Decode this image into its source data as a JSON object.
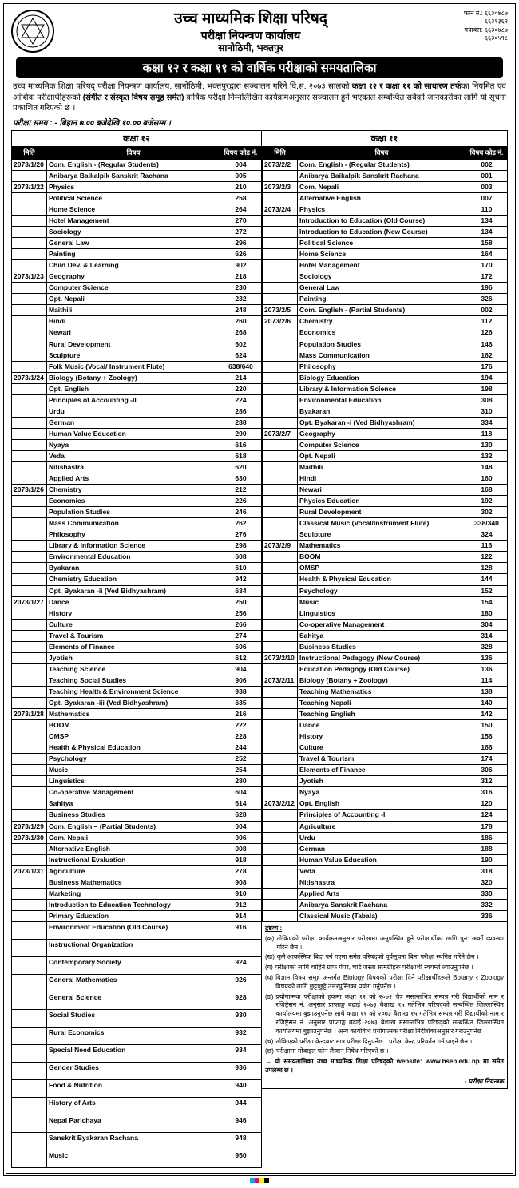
{
  "header": {
    "org": "उच्च माध्यमिक शिक्षा परिषद्",
    "dept": "परीक्षा नियन्त्रण कार्यालय",
    "addr": "सानोठिमी, भक्तपुर",
    "phone_lbl": "फोन नं.:",
    "phones": [
      "६६३०७८७",
      "६६३१३६२"
    ],
    "fax_lbl": "फ्याक्स:",
    "faxes": [
      "६६३०७८७",
      "६६३०५९८"
    ]
  },
  "banner": "कक्षा १२ र कक्षा ११ को वार्षिक परीक्षाको समयतालिका",
  "intro": "उच्च माध्यमिक शिक्षा परिषद् परीक्षा नियन्त्रण कार्यालय, सानोठिमी, भक्तपुरद्वारा सञ्चालन गरिने वि.सं. २०७३ सालको <b>कक्षा १२ र कक्षा ११ को साधारण तर्फ</b>का नियमित एवं आंशिक परीक्षार्थीहरूको <b>(संगीत र संस्कृत विषय समूह समेत)</b> वार्षिक परीक्षा निम्नलिखित कार्यक्रमअनुसार सञ्चालन हुने भएकाले सम्बन्धित सबैको जानकारीका लागि यो सूचना प्रकाशित गरिएको छ ।",
  "exam_time": "परीक्षा समय : - बिहान ७.०० बजेदेखि १०.०० बजेसम्म ।",
  "class12_title": "कक्षा १२",
  "class11_title": "कक्षा ११",
  "th": {
    "date": "मिति",
    "subject": "विषय",
    "code": "विषय कोड नं."
  },
  "c12": [
    [
      "2073/1/20",
      "Com. English - (Regular Students)",
      "004"
    ],
    [
      "",
      "Anibarya Baikalpik Sanskrit Rachana",
      "005"
    ],
    [
      "2073/1/22",
      "Physics",
      "210"
    ],
    [
      "",
      "Political Science",
      "258"
    ],
    [
      "",
      "Home Science",
      "264"
    ],
    [
      "",
      "Hotel Management",
      "270"
    ],
    [
      "",
      "Sociology",
      "272"
    ],
    [
      "",
      "General Law",
      "296"
    ],
    [
      "",
      "Painting",
      "626"
    ],
    [
      "",
      "Child Dev. & Learning",
      "902"
    ],
    [
      "2073/1/23",
      "Geography",
      "218"
    ],
    [
      "",
      "Computer Science",
      "230"
    ],
    [
      "",
      "Opt. Nepali",
      "232"
    ],
    [
      "",
      "Maithili",
      "248"
    ],
    [
      "",
      "Hindi",
      "260"
    ],
    [
      "",
      "Newari",
      "268"
    ],
    [
      "",
      "Rural Development",
      "602"
    ],
    [
      "",
      "Sculpture",
      "624"
    ],
    [
      "",
      "Folk Music (Vocal/ Instrument Flute)",
      "638/640"
    ],
    [
      "2073/1/24",
      "Biology  (Botany + Zoology)",
      "214"
    ],
    [
      "",
      "Opt. English",
      "220"
    ],
    [
      "",
      "Principles of Accounting -II",
      "224"
    ],
    [
      "",
      "Urdu",
      "286"
    ],
    [
      "",
      "German",
      "288"
    ],
    [
      "",
      "Human Value Education",
      "290"
    ],
    [
      "",
      "Nyaya",
      "616"
    ],
    [
      "",
      "Veda",
      "618"
    ],
    [
      "",
      "Nitishastra",
      "620"
    ],
    [
      "",
      "Applied Arts",
      "630"
    ],
    [
      "2073/1/26",
      "Chemistry",
      "212"
    ],
    [
      "",
      "Economics",
      "226"
    ],
    [
      "",
      "Population Studies",
      "246"
    ],
    [
      "",
      "Mass Communication",
      "262"
    ],
    [
      "",
      "Philosophy",
      "276"
    ],
    [
      "",
      "Library & Information Science",
      "298"
    ],
    [
      "",
      "Environmental Education",
      "608"
    ],
    [
      "",
      "Byakaran",
      "610"
    ],
    [
      "",
      "Chemistry Education",
      "942"
    ],
    [
      "",
      "Opt. Byakaran -ii (Ved Bidhyashram)",
      "634"
    ],
    [
      "2073/1/27",
      "Dance",
      "250"
    ],
    [
      "",
      "History",
      "256"
    ],
    [
      "",
      "Culture",
      "266"
    ],
    [
      "",
      "Travel & Tourism",
      "274"
    ],
    [
      "",
      "Elements of Finance",
      "606"
    ],
    [
      "",
      "Jyotish",
      "612"
    ],
    [
      "",
      "Teaching Science",
      "904"
    ],
    [
      "",
      "Teaching Social Studies",
      "906"
    ],
    [
      "",
      "Teaching Health & Environment Science",
      "938"
    ],
    [
      "",
      "Opt. Byakaran -iii (Ved Bidhyashram)",
      "635"
    ],
    [
      "2073/1/28",
      "Mathematics",
      "216"
    ],
    [
      "",
      "BOOM",
      "222"
    ],
    [
      "",
      "OMSP",
      "228"
    ],
    [
      "",
      "Health & Physical Education",
      "244"
    ],
    [
      "",
      "Psychology",
      "252"
    ],
    [
      "",
      "Music",
      "254"
    ],
    [
      "",
      "Linguistics",
      "280"
    ],
    [
      "",
      "Co-operative Management",
      "604"
    ],
    [
      "",
      "Sahitya",
      "614"
    ],
    [
      "",
      "Business Studies",
      "628"
    ],
    [
      "2073/1/29",
      "Com. English – (Partial Students)",
      "004"
    ],
    [
      "2073/1/30",
      "Com. Nepali",
      "006"
    ],
    [
      "",
      "Alternative English",
      "008"
    ],
    [
      "",
      "Instructional Evaluation",
      "918"
    ],
    [
      "2073/1/31",
      "Agriculture",
      "278"
    ],
    [
      "",
      "Business Mathematics",
      "908"
    ],
    [
      "",
      "Marketing",
      "910"
    ],
    [
      "",
      "Introduction to Education Technology",
      "912"
    ],
    [
      "",
      "Primary Education",
      "914"
    ],
    [
      "",
      "Environment Education (Old Course)",
      "916"
    ],
    [
      "",
      "Instructional Organization",
      ""
    ],
    [
      "",
      "Contemporary Society",
      "924"
    ],
    [
      "",
      "General Mathematics",
      "926"
    ],
    [
      "",
      "General Science",
      "928"
    ],
    [
      "",
      "Social Studies",
      "930"
    ],
    [
      "",
      "Rural Economics",
      "932"
    ],
    [
      "",
      "Special Need Education",
      "934"
    ],
    [
      "",
      "Gender Studies",
      "936"
    ],
    [
      "",
      "Food & Nutrition",
      "940"
    ],
    [
      "",
      "History of Arts",
      "944"
    ],
    [
      "",
      "Nepal Parichaya",
      "946"
    ],
    [
      "",
      "Sanskrit Byakaran Rachana",
      "948"
    ],
    [
      "",
      "Music",
      "950"
    ]
  ],
  "c11": [
    [
      "2073/2/2",
      "Com. English -  (Regular Students)",
      "002"
    ],
    [
      "",
      "Anibarya Baikalpik Sanskrit Rachana",
      "001"
    ],
    [
      "2073/2/3",
      "Com. Nepali",
      "003"
    ],
    [
      "",
      "Alternative English",
      "007"
    ],
    [
      "2073/2/4",
      "Physics",
      "110"
    ],
    [
      "",
      "Introduction to Education (Old Course)",
      "134"
    ],
    [
      "",
      "Introduction to Education (New Course)",
      "134"
    ],
    [
      "",
      "Political Science",
      "158"
    ],
    [
      "",
      "Home Science",
      "164"
    ],
    [
      "",
      "Hotel Management",
      "170"
    ],
    [
      "",
      "Sociology",
      "172"
    ],
    [
      "",
      "General Law",
      "196"
    ],
    [
      "",
      "Painting",
      "326"
    ],
    [
      "2073/2/5",
      "Com. English -  (Partial Students)",
      "002"
    ],
    [
      "2073/2/6",
      "Chemistry",
      "112"
    ],
    [
      "",
      "Economics",
      "126"
    ],
    [
      "",
      "Population Studies",
      "146"
    ],
    [
      "",
      "Mass Communication",
      "162"
    ],
    [
      "",
      "Philosophy",
      "176"
    ],
    [
      "",
      "Biology Education",
      "194"
    ],
    [
      "",
      "Library & Information Science",
      "198"
    ],
    [
      "",
      "Environmental Education",
      "308"
    ],
    [
      "",
      "Byakaran",
      "310"
    ],
    [
      "",
      "Opt. Byakaran -i (Ved Bidhyashram)",
      "334"
    ],
    [
      "2073/2/7",
      "Geography",
      "118"
    ],
    [
      "",
      "Computer Science",
      "130"
    ],
    [
      "",
      "Opt. Nepali",
      "132"
    ],
    [
      "",
      "Maithili",
      "148"
    ],
    [
      "",
      "Hindi",
      "160"
    ],
    [
      "",
      "Newari",
      "168"
    ],
    [
      "",
      "Physics Education",
      "192"
    ],
    [
      "",
      "Rural Development",
      "302"
    ],
    [
      "",
      "Classical Music (Vocal/Instrument Flute)",
      "338/340"
    ],
    [
      "",
      "Sculpture",
      "324"
    ],
    [
      "2073/2/9",
      "Mathematics",
      "116"
    ],
    [
      "",
      "BOOM",
      "122"
    ],
    [
      "",
      "OMSP",
      "128"
    ],
    [
      "",
      "Health & Physical Education",
      "144"
    ],
    [
      "",
      "Psychology",
      "152"
    ],
    [
      "",
      "Music",
      "154"
    ],
    [
      "",
      "Linguistics",
      "180"
    ],
    [
      "",
      "Co-operative Management",
      "304"
    ],
    [
      "",
      "Sahitya",
      "314"
    ],
    [
      "",
      "Business Studies",
      "328"
    ],
    [
      "2073/2/10",
      "Instructional Pedagogy (New Course)",
      "136"
    ],
    [
      "",
      "Education Pedagogy (Old Course)",
      "136"
    ],
    [
      "2073/2/11",
      "Biology  (Botany + Zoology)",
      "114"
    ],
    [
      "",
      "Teaching Mathematics",
      "138"
    ],
    [
      "",
      "Teaching Nepali",
      "140"
    ],
    [
      "",
      "Teaching English",
      "142"
    ],
    [
      "",
      "Dance",
      "150"
    ],
    [
      "",
      "History",
      "156"
    ],
    [
      "",
      "Culture",
      "166"
    ],
    [
      "",
      "Travel & Tourism",
      "174"
    ],
    [
      "",
      "Elements of Finance",
      "306"
    ],
    [
      "",
      "Jyotish",
      "312"
    ],
    [
      "",
      "Nyaya",
      "316"
    ],
    [
      "2073/2/12",
      "Opt. English",
      "120"
    ],
    [
      "",
      "Principles of Accounting -I",
      "124"
    ],
    [
      "",
      "Agriculture",
      "178"
    ],
    [
      "",
      "Urdu",
      "186"
    ],
    [
      "",
      "German",
      "188"
    ],
    [
      "",
      "Human Value Education",
      "190"
    ],
    [
      "",
      "Veda",
      "318"
    ],
    [
      "",
      "Nitishastra",
      "320"
    ],
    [
      "",
      "Applied Arts",
      "330"
    ],
    [
      "",
      "Anibarya Sanskrit Rachana",
      "332"
    ],
    [
      "",
      "Classical Music (Tabala)",
      "336"
    ]
  ],
  "notes": {
    "title": "द्रष्टव्य :",
    "items": [
      [
        "(क)",
        "तोकिएको परीक्षा कार्यक्रमअनुसार परीक्षामा अनुपस्थित हुने परीक्षार्थीका लागि पुन: अर्को व्यवस्था गरिने छैन ।"
      ],
      [
        "(ख)",
        "कुनै आकस्मिक बिदा पर्न गएमा समेत परिषद्को पूर्वसूचना बिना परीक्षा स्थगित गरिने छैन ।"
      ],
      [
        "(ग)",
        "परीक्षाको लागि चाहिने ग्राफ पेपर, चार्ट जस्ता सामग्रीहरू परीक्षार्थी स्वयम्ले ल्याउनुपर्नेछ ।"
      ],
      [
        "(घ)",
        "विज्ञान विषय समूह अन्तर्गत Biology विषयको परीक्षा दिने परीक्षार्थीहरूले Botany र Zoology विषयको लागि छुट्टाछुट्टै उत्तरपुस्तिका प्रयोग गर्नुपर्नेछ ।"
      ],
      [
        "(ङ)",
        "प्रयोगात्मक परीक्षाको हकमा कक्षा १२ को २०७२ चैत्र मसान्तभित्र सम्पन्न गरी विद्यार्थीको नाम र रजिष्ट्रेसन नं. अनुसार प्राप्ताङ्क बढाई २०७३ बैशाख १५ गतेभित्र परिषद्को सम्बन्धित जिल्लास्थित कार्यालयमा बुझाउनुपर्नेछ साथै कक्षा ११ को २०७३ बैशाख १५ गतेभित्र सम्पन्न गरी विद्यार्थीको नाम र रजिष्ट्रेसन नं. अनुसार प्राप्ताङ्क बढाई २०७३ बैशाख मसान्तभित्र परिषद्को सम्बन्धित जिल्लास्थित कार्यालयमा बुझाउनुपर्नेछ । अन्य कार्यविधि प्रयोगात्मक परीक्षा निर्देशिकाअनुसार गराउनुपर्नेछ ।"
      ],
      [
        "(च)",
        "तोकिएको परीक्षा केन्द्रबाट मात्र परीक्षा दिनुपर्नेछ । परीक्षा केन्द्र परिवर्तन गर्न पाइने छैन ।"
      ],
      [
        "(छ)",
        "परीक्षामा मोबाइल फोन लैजान निषेध गरिएको छ ।"
      ]
    ],
    "arrow": "→ यो समयतालिका उच्च माध्यमिक शिक्षा परिषद्को website: www.hseb.edu.np मा समेत उपलब्ध छ ।",
    "sign": "- परीक्षा नियन्त्रक"
  }
}
